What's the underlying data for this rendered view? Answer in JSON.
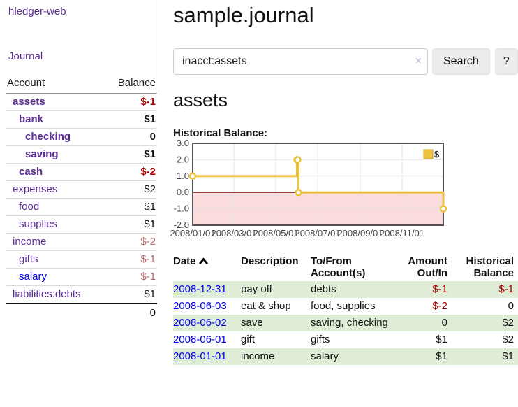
{
  "colors": {
    "link_purple": "#5b2d91",
    "link_blue": "#0000e8",
    "negative_strong": "#a40000",
    "negative_soft": "#b16a6a",
    "row_stripe_green": "#dfecd6",
    "series_yellow": "#edc240",
    "chart_negative_region": "#fbdcdc",
    "chart_zero_line": "#8b0000"
  },
  "sidebar": {
    "brand": "hledger-web",
    "journal_link": "Journal",
    "accounts": {
      "headers": {
        "account": "Account",
        "balance": "Balance"
      },
      "rows": [
        {
          "name": "assets",
          "depth": 1,
          "bold": true,
          "balance": "$-1",
          "value_style": "neg-strong",
          "link_style": "visited"
        },
        {
          "name": "bank",
          "depth": 2,
          "bold": true,
          "balance": "$1",
          "value_style": "pos",
          "link_style": "visited"
        },
        {
          "name": "checking",
          "depth": 3,
          "bold": true,
          "balance": "0",
          "value_style": "pos",
          "link_style": "visited"
        },
        {
          "name": "saving",
          "depth": 3,
          "bold": true,
          "balance": "$1",
          "value_style": "pos",
          "link_style": "visited"
        },
        {
          "name": "cash",
          "depth": 2,
          "bold": true,
          "balance": "$-2",
          "value_style": "neg-strong",
          "link_style": "visited"
        },
        {
          "name": "expenses",
          "depth": 1,
          "bold": false,
          "balance": "$2",
          "value_style": "pos",
          "link_style": "visited"
        },
        {
          "name": "food",
          "depth": 2,
          "bold": false,
          "balance": "$1",
          "value_style": "pos",
          "link_style": "visited"
        },
        {
          "name": "supplies",
          "depth": 2,
          "bold": false,
          "balance": "$1",
          "value_style": "pos",
          "link_style": "visited"
        },
        {
          "name": "income",
          "depth": 1,
          "bold": false,
          "balance": "$-2",
          "value_style": "neg-soft",
          "link_style": "visited"
        },
        {
          "name": "gifts",
          "depth": 2,
          "bold": false,
          "balance": "$-1",
          "value_style": "neg-soft",
          "link_style": "visited"
        },
        {
          "name": "salary",
          "depth": 2,
          "bold": false,
          "balance": "$-1",
          "value_style": "neg-soft",
          "link_style": "unvisited"
        },
        {
          "name": "liabilities:debts",
          "depth": 1,
          "bold": false,
          "balance": "$1",
          "value_style": "pos",
          "link_style": "visited"
        }
      ],
      "total": "0"
    }
  },
  "main": {
    "title": "sample.journal",
    "search": {
      "value": "inacct:assets",
      "clear": "×",
      "button": "Search",
      "help": "?"
    },
    "account_heading": "assets",
    "section_heading": "Historical Balance:"
  },
  "register": {
    "headers": {
      "date": "Date",
      "description": "Description",
      "tofrom": "To/From Account(s)",
      "amount": "Amount Out/In",
      "balance": "Historical Balance"
    },
    "rows": [
      {
        "date": "2008-12-31",
        "description": "pay off",
        "accounts": "debts",
        "amount": "$-1",
        "amount_neg": true,
        "balance": "$-1",
        "balance_neg": true
      },
      {
        "date": "2008-06-03",
        "description": "eat & shop",
        "accounts": "food, supplies",
        "amount": "$-2",
        "amount_neg": true,
        "balance": "0",
        "balance_neg": false
      },
      {
        "date": "2008-06-02",
        "description": "save",
        "accounts": "saving, checking",
        "amount": "0",
        "amount_neg": false,
        "balance": "$2",
        "balance_neg": false
      },
      {
        "date": "2008-06-01",
        "description": "gift",
        "accounts": "gifts",
        "amount": "$1",
        "amount_neg": false,
        "balance": "$2",
        "balance_neg": false
      },
      {
        "date": "2008-01-01",
        "description": "income",
        "accounts": "salary",
        "amount": "$1",
        "amount_neg": false,
        "balance": "$1",
        "balance_neg": false
      }
    ]
  },
  "chart_data": {
    "type": "line",
    "steps": true,
    "title": "Historical Balance:",
    "series": [
      {
        "name": "$",
        "color": "#edc240",
        "points": [
          [
            "2008-01-01",
            1
          ],
          [
            "2008-06-01",
            2
          ],
          [
            "2008-06-02",
            2
          ],
          [
            "2008-06-03",
            0
          ],
          [
            "2008-12-31",
            -1
          ]
        ]
      }
    ],
    "x_range": [
      "2008-01-01",
      "2008-12-31"
    ],
    "x_ticks": [
      {
        "date": "2008-01-01",
        "label": "2008/01/01"
      },
      {
        "date": "2008-03-01",
        "label": "2008/03/01"
      },
      {
        "date": "2008-05-01",
        "label": "2008/05/01"
      },
      {
        "date": "2008-07-01",
        "label": "2008/07/01"
      },
      {
        "date": "2008-09-01",
        "label": "2008/09/01"
      },
      {
        "date": "2008-11-01",
        "label": "2008/11/01"
      }
    ],
    "ylim": [
      -2,
      3
    ],
    "y_tick_step": 1,
    "y_tick_labels": [
      "3.0",
      "2.0",
      "1.0",
      "0.0",
      "-1.0",
      "-2.0"
    ],
    "legend": {
      "position": "top-right",
      "label": "$"
    },
    "grid": true
  }
}
